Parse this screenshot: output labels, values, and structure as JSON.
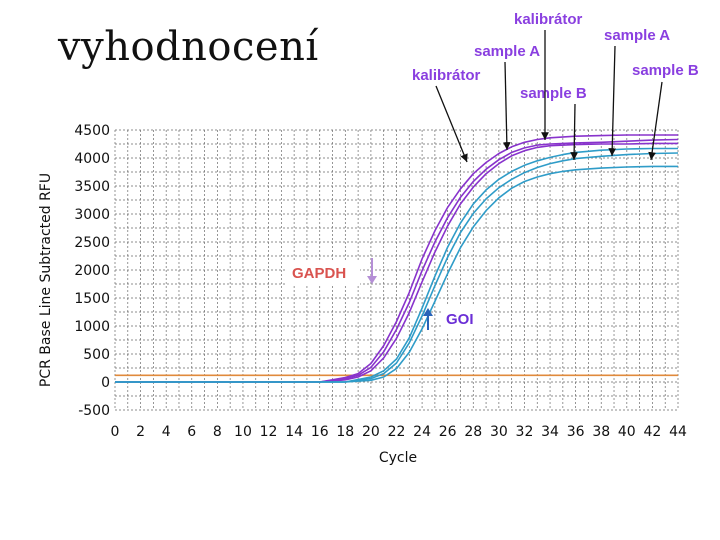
{
  "slide": {
    "title": "vyhodnocení"
  },
  "colors": {
    "gapdh": "#8833cc",
    "goi": "#2f9cc8",
    "threshold": "#e08a3c",
    "grid": "#6a6a6a",
    "gapdh_label": "#d9534f",
    "goi_label": "#6b2fd6",
    "sample_label": "#8a3fe0"
  },
  "chart_data": {
    "type": "line",
    "ylabel": "PCR Base Line Subtracted RFU",
    "xlabel": "Cycle",
    "xlim": [
      0,
      44
    ],
    "ylim": [
      -500,
      4500
    ],
    "x_ticks": [
      0,
      2,
      4,
      6,
      8,
      10,
      12,
      14,
      16,
      18,
      20,
      22,
      24,
      26,
      28,
      30,
      32,
      34,
      36,
      38,
      40,
      42,
      44
    ],
    "y_ticks": [
      -500,
      0,
      500,
      1000,
      1500,
      2000,
      2500,
      3000,
      3500,
      4000,
      4500
    ],
    "threshold": 120,
    "grid": true,
    "series": [
      {
        "group": "GAPDH",
        "color": "#8833cc",
        "x": [
          0,
          16,
          18,
          19,
          20,
          21,
          22,
          23,
          24,
          25,
          26,
          27,
          28,
          29,
          30,
          31,
          32,
          33,
          34,
          36,
          38,
          40,
          42,
          44
        ],
        "values": [
          0,
          0,
          80,
          150,
          330,
          650,
          1080,
          1600,
          2200,
          2700,
          3120,
          3450,
          3720,
          3920,
          4080,
          4200,
          4280,
          4330,
          4360,
          4390,
          4400,
          4410,
          4410,
          4410
        ]
      },
      {
        "group": "GAPDH",
        "color": "#8833cc",
        "x": [
          0,
          16,
          18,
          19,
          20,
          21,
          22,
          23,
          24,
          25,
          26,
          27,
          28,
          29,
          30,
          31,
          32,
          33,
          34,
          36,
          38,
          40,
          42,
          44
        ],
        "values": [
          0,
          0,
          60,
          120,
          260,
          540,
          940,
          1420,
          1990,
          2500,
          2940,
          3300,
          3580,
          3800,
          3970,
          4100,
          4180,
          4230,
          4250,
          4270,
          4280,
          4300,
          4320,
          4330
        ]
      },
      {
        "group": "GAPDH",
        "color": "#8833cc",
        "x": [
          0,
          16,
          18,
          19,
          20,
          21,
          22,
          23,
          24,
          25,
          26,
          27,
          28,
          29,
          30,
          31,
          32,
          33,
          34,
          36,
          38,
          40,
          42,
          44
        ],
        "values": [
          0,
          0,
          40,
          90,
          200,
          430,
          780,
          1240,
          1790,
          2320,
          2790,
          3180,
          3480,
          3720,
          3900,
          4040,
          4130,
          4190,
          4220,
          4240,
          4250,
          4250,
          4260,
          4260
        ]
      },
      {
        "group": "GOI",
        "color": "#2f9cc8",
        "x": [
          0,
          18,
          20,
          21,
          22,
          23,
          24,
          25,
          26,
          27,
          28,
          29,
          30,
          31,
          32,
          33,
          34,
          35,
          36,
          38,
          40,
          42,
          44
        ],
        "values": [
          0,
          0,
          90,
          200,
          410,
          790,
          1320,
          1890,
          2410,
          2840,
          3180,
          3430,
          3620,
          3760,
          3870,
          3950,
          4010,
          4060,
          4100,
          4140,
          4160,
          4170,
          4170
        ]
      },
      {
        "group": "GOI",
        "color": "#2f9cc8",
        "x": [
          0,
          18,
          20,
          21,
          22,
          23,
          24,
          25,
          26,
          27,
          28,
          29,
          30,
          31,
          32,
          33,
          34,
          35,
          36,
          38,
          40,
          42,
          44
        ],
        "values": [
          0,
          0,
          60,
          150,
          340,
          700,
          1180,
          1720,
          2230,
          2670,
          3010,
          3270,
          3470,
          3620,
          3740,
          3830,
          3900,
          3950,
          3990,
          4030,
          4060,
          4080,
          4090
        ]
      },
      {
        "group": "GOI",
        "color": "#2f9cc8",
        "x": [
          0,
          18,
          20,
          21,
          22,
          23,
          24,
          25,
          26,
          27,
          28,
          29,
          30,
          31,
          32,
          33,
          34,
          35,
          36,
          38,
          40,
          42,
          44
        ],
        "values": [
          0,
          0,
          30,
          90,
          240,
          530,
          950,
          1440,
          1940,
          2400,
          2770,
          3060,
          3290,
          3460,
          3580,
          3660,
          3720,
          3760,
          3790,
          3820,
          3840,
          3850,
          3850
        ]
      }
    ],
    "annotations": [
      {
        "text": "GAPDH",
        "color": "#d9534f"
      },
      {
        "text": "GOI",
        "color": "#6b2fd6"
      },
      {
        "text": "kalibrátor",
        "color": "#8a3fe0"
      },
      {
        "text": "sample A",
        "color": "#8a3fe0"
      },
      {
        "text": "kalibrátor",
        "color": "#8a3fe0"
      },
      {
        "text": "sample B",
        "color": "#8a3fe0"
      },
      {
        "text": "sample A",
        "color": "#8a3fe0"
      },
      {
        "text": "sample B",
        "color": "#8a3fe0"
      }
    ]
  }
}
